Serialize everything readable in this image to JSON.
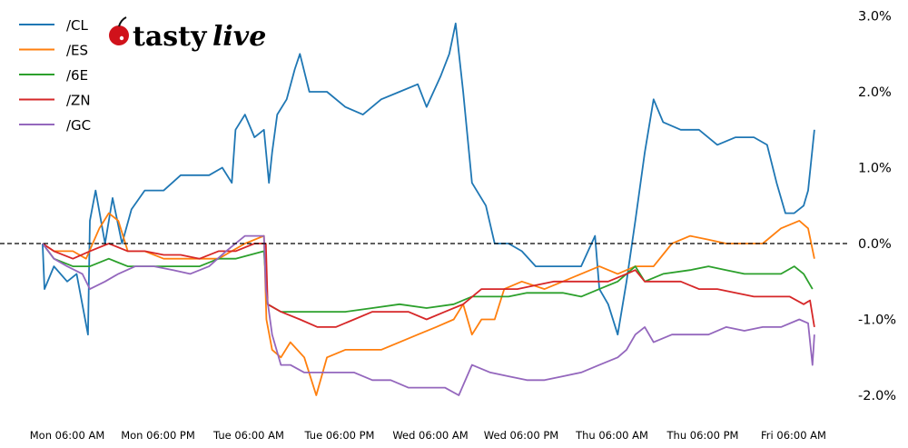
{
  "logo": {
    "text_a": "tasty",
    "text_b": "live"
  },
  "chart_data": {
    "type": "line",
    "title": "",
    "xlabel": "",
    "ylabel": "",
    "ylim": [
      -2.0,
      3.0
    ],
    "y_axis_side": "right",
    "y_ticks": [
      3.0,
      2.0,
      1.0,
      0.0,
      -1.0,
      -2.0
    ],
    "y_tick_labels": [
      "3.0%",
      "2.0%",
      "1.0%",
      "0.0%",
      "-1.0%",
      "-2.0%"
    ],
    "x_ticks": [
      "Mon 06:00",
      "Mon 18:00",
      "Tue 06:00",
      "Tue 18:00",
      "Wed 06:00",
      "Wed 18:00",
      "Thu 06:00",
      "Thu 18:00",
      "Fri 06:00"
    ],
    "x_tick_labels": [
      "Mon 06:00 AM",
      "Mon 06:00 PM",
      "Tue 06:00 AM",
      "Tue 06:00 PM",
      "Wed 06:00 AM",
      "Wed 06:00 PM",
      "Thu 06:00 AM",
      "Thu 06:00 PM",
      "Fri 06:00 AM"
    ],
    "reference_line": {
      "y": 0.0,
      "style": "dashed",
      "color": "#000000"
    },
    "grid": false,
    "legend_position": "top-left",
    "series": [
      {
        "name": "/CL",
        "color": "#1f77b4",
        "points": [
          [
            "Mon 02:45",
            0
          ],
          [
            "Mon 03:00",
            -0.6
          ],
          [
            "Mon 04:15",
            -0.3
          ],
          [
            "Mon 06:00",
            -0.5
          ],
          [
            "Mon 07:15",
            -0.4
          ],
          [
            "Mon 08:45",
            -1.2
          ],
          [
            "Mon 09:00",
            0.3
          ],
          [
            "Mon 09:45",
            0.7
          ],
          [
            "Mon 11:00",
            0.0
          ],
          [
            "Mon 12:00",
            0.6
          ],
          [
            "Mon 13:15",
            0.0
          ],
          [
            "Mon 14:30",
            0.45
          ],
          [
            "Mon 16:15",
            0.7
          ],
          [
            "Mon 18:45",
            0.7
          ],
          [
            "Mon 21:00",
            0.9
          ],
          [
            "Tue 00:45",
            0.9
          ],
          [
            "Tue 02:30",
            1.0
          ],
          [
            "Tue 03:45",
            0.8
          ],
          [
            "Tue 04:15",
            1.5
          ],
          [
            "Tue 05:30",
            1.7
          ],
          [
            "Tue 06:45",
            1.4
          ],
          [
            "Tue 08:00",
            1.5
          ],
          [
            "Tue 08:40",
            0.8
          ],
          [
            "Tue 09:05",
            1.2
          ],
          [
            "Tue 09:45",
            1.7
          ],
          [
            "Tue 11:00",
            1.9
          ],
          [
            "Tue 12:05",
            2.3
          ],
          [
            "Tue 12:45",
            2.5
          ],
          [
            "Tue 14:00",
            2.0
          ],
          [
            "Tue 16:20",
            2.0
          ],
          [
            "Tue 18:45",
            1.8
          ],
          [
            "Tue 21:05",
            1.7
          ],
          [
            "Tue 23:30",
            1.9
          ],
          [
            "Wed 01:55",
            2.0
          ],
          [
            "Wed 04:20",
            2.1
          ],
          [
            "Wed 05:30",
            1.8
          ],
          [
            "Wed 07:20",
            2.2
          ],
          [
            "Wed 08:30",
            2.5
          ],
          [
            "Wed 09:20",
            2.9
          ],
          [
            "Wed 10:20",
            2.0
          ],
          [
            "Wed 11:30",
            0.8
          ],
          [
            "Wed 13:20",
            0.5
          ],
          [
            "Wed 14:30",
            0.0
          ],
          [
            "Wed 16:20",
            0.0
          ],
          [
            "Wed 18:05",
            -0.1
          ],
          [
            "Wed 19:55",
            -0.3
          ],
          [
            "Wed 22:20",
            -0.3
          ],
          [
            "Thu 00:05",
            -0.3
          ],
          [
            "Thu 01:55",
            -0.3
          ],
          [
            "Thu 03:45",
            0.1
          ],
          [
            "Thu 04:20",
            -0.6
          ],
          [
            "Thu 05:30",
            -0.8
          ],
          [
            "Thu 06:45",
            -1.2
          ],
          [
            "Thu 07:55",
            -0.5
          ],
          [
            "Thu 09:05",
            0.3
          ],
          [
            "Thu 10:20",
            1.2
          ],
          [
            "Thu 11:30",
            1.9
          ],
          [
            "Thu 12:45",
            1.6
          ],
          [
            "Thu 15:05",
            1.5
          ],
          [
            "Thu 17:30",
            1.5
          ],
          [
            "Thu 19:55",
            1.3
          ],
          [
            "Thu 22:20",
            1.4
          ],
          [
            "Fri 00:45",
            1.4
          ],
          [
            "Fri 02:30",
            1.3
          ],
          [
            "Fri 03:45",
            0.8
          ],
          [
            "Fri 04:55",
            0.4
          ],
          [
            "Fri 06:05",
            0.4
          ],
          [
            "Fri 07:20",
            0.5
          ],
          [
            "Fri 07:55",
            0.7
          ],
          [
            "Fri 08:45",
            1.5
          ]
        ]
      },
      {
        "name": "/ES",
        "color": "#ff7f0e",
        "points": [
          [
            "Mon 02:45",
            0
          ],
          [
            "Mon 04:15",
            -0.1
          ],
          [
            "Mon 06:45",
            -0.1
          ],
          [
            "Mon 08:30",
            -0.2
          ],
          [
            "Mon 10:15",
            0.2
          ],
          [
            "Mon 11:30",
            0.4
          ],
          [
            "Mon 12:45",
            0.3
          ],
          [
            "Mon 14:00",
            -0.1
          ],
          [
            "Mon 16:15",
            -0.1
          ],
          [
            "Mon 18:45",
            -0.2
          ],
          [
            "Mon 21:00",
            -0.2
          ],
          [
            "Mon 23:30",
            -0.2
          ],
          [
            "Tue 02:00",
            -0.2
          ],
          [
            "Tue 05:30",
            0.0
          ],
          [
            "Tue 08:00",
            0.1
          ],
          [
            "Tue 08:20",
            -1.0
          ],
          [
            "Tue 09:05",
            -1.4
          ],
          [
            "Tue 10:15",
            -1.5
          ],
          [
            "Tue 11:30",
            -1.3
          ],
          [
            "Tue 13:20",
            -1.5
          ],
          [
            "Tue 14:55",
            -2.0
          ],
          [
            "Tue 16:20",
            -1.5
          ],
          [
            "Tue 18:45",
            -1.4
          ],
          [
            "Tue 21:05",
            -1.4
          ],
          [
            "Tue 23:30",
            -1.4
          ],
          [
            "Wed 01:55",
            -1.3
          ],
          [
            "Wed 04:20",
            -1.2
          ],
          [
            "Wed 06:45",
            -1.1
          ],
          [
            "Wed 09:05",
            -1.0
          ],
          [
            "Wed 10:20",
            -0.8
          ],
          [
            "Wed 11:30",
            -1.2
          ],
          [
            "Wed 12:45",
            -1.0
          ],
          [
            "Wed 14:30",
            -1.0
          ],
          [
            "Wed 15:45",
            -0.6
          ],
          [
            "Wed 18:05",
            -0.5
          ],
          [
            "Wed 21:05",
            -0.6
          ],
          [
            "Wed 23:30",
            -0.5
          ],
          [
            "Thu 01:55",
            -0.4
          ],
          [
            "Thu 04:20",
            -0.3
          ],
          [
            "Thu 06:45",
            -0.4
          ],
          [
            "Thu 09:05",
            -0.3
          ],
          [
            "Thu 11:30",
            -0.3
          ],
          [
            "Thu 13:55",
            0.0
          ],
          [
            "Thu 16:20",
            0.1
          ],
          [
            "Thu 18:45",
            0.05
          ],
          [
            "Thu 21:05",
            0.0
          ],
          [
            "Thu 23:30",
            0.0
          ],
          [
            "Fri 01:55",
            0.0
          ],
          [
            "Fri 04:20",
            0.2
          ],
          [
            "Fri 06:45",
            0.3
          ],
          [
            "Fri 07:55",
            0.2
          ],
          [
            "Fri 08:45",
            -0.2
          ]
        ]
      },
      {
        "name": "/6E",
        "color": "#2ca02c",
        "points": [
          [
            "Mon 02:45",
            0
          ],
          [
            "Mon 04:15",
            -0.2
          ],
          [
            "Mon 06:45",
            -0.3
          ],
          [
            "Mon 09:00",
            -0.3
          ],
          [
            "Mon 11:30",
            -0.2
          ],
          [
            "Mon 14:00",
            -0.3
          ],
          [
            "Mon 16:15",
            -0.3
          ],
          [
            "Mon 18:45",
            -0.3
          ],
          [
            "Mon 21:00",
            -0.3
          ],
          [
            "Mon 23:30",
            -0.3
          ],
          [
            "Tue 02:00",
            -0.2
          ],
          [
            "Tue 04:15",
            -0.2
          ],
          [
            "Tue 08:00",
            -0.1
          ],
          [
            "Tue 08:30",
            -0.8
          ],
          [
            "Tue 10:15",
            -0.9
          ],
          [
            "Tue 12:45",
            -0.9
          ],
          [
            "Tue 15:05",
            -0.9
          ],
          [
            "Tue 18:45",
            -0.9
          ],
          [
            "Tue 22:20",
            -0.85
          ],
          [
            "Wed 01:55",
            -0.8
          ],
          [
            "Wed 05:30",
            -0.85
          ],
          [
            "Wed 09:05",
            -0.8
          ],
          [
            "Wed 11:30",
            -0.7
          ],
          [
            "Wed 13:55",
            -0.7
          ],
          [
            "Wed 16:20",
            -0.7
          ],
          [
            "Wed 18:45",
            -0.65
          ],
          [
            "Wed 21:05",
            -0.65
          ],
          [
            "Wed 23:30",
            -0.65
          ],
          [
            "Thu 01:55",
            -0.7
          ],
          [
            "Thu 04:20",
            -0.6
          ],
          [
            "Thu 06:45",
            -0.5
          ],
          [
            "Thu 09:05",
            -0.3
          ],
          [
            "Thu 10:20",
            -0.5
          ],
          [
            "Thu 12:45",
            -0.4
          ],
          [
            "Thu 16:20",
            -0.35
          ],
          [
            "Thu 18:45",
            -0.3
          ],
          [
            "Thu 21:05",
            -0.35
          ],
          [
            "Thu 23:30",
            -0.4
          ],
          [
            "Fri 01:55",
            -0.4
          ],
          [
            "Fri 04:20",
            -0.4
          ],
          [
            "Fri 06:05",
            -0.3
          ],
          [
            "Fri 07:20",
            -0.4
          ],
          [
            "Fri 08:30",
            -0.6
          ]
        ]
      },
      {
        "name": "/ZN",
        "color": "#d62728",
        "points": [
          [
            "Mon 02:45",
            0
          ],
          [
            "Mon 04:15",
            -0.1
          ],
          [
            "Mon 06:45",
            -0.2
          ],
          [
            "Mon 09:00",
            -0.1
          ],
          [
            "Mon 11:30",
            0.0
          ],
          [
            "Mon 14:00",
            -0.1
          ],
          [
            "Mon 16:15",
            -0.1
          ],
          [
            "Mon 18:45",
            -0.15
          ],
          [
            "Mon 21:00",
            -0.15
          ],
          [
            "Mon 23:30",
            -0.2
          ],
          [
            "Tue 02:00",
            -0.1
          ],
          [
            "Tue 04:15",
            -0.1
          ],
          [
            "Tue 06:45",
            0.0
          ],
          [
            "Tue 08:15",
            0.0
          ],
          [
            "Tue 08:30",
            -0.8
          ],
          [
            "Tue 10:15",
            -0.9
          ],
          [
            "Tue 12:45",
            -1.0
          ],
          [
            "Tue 15:05",
            -1.1
          ],
          [
            "Tue 17:30",
            -1.1
          ],
          [
            "Tue 19:55",
            -1.0
          ],
          [
            "Tue 22:20",
            -0.9
          ],
          [
            "Wed 00:45",
            -0.9
          ],
          [
            "Wed 03:05",
            -0.9
          ],
          [
            "Wed 05:30",
            -1.0
          ],
          [
            "Wed 07:55",
            -0.9
          ],
          [
            "Wed 10:20",
            -0.8
          ],
          [
            "Wed 12:45",
            -0.6
          ],
          [
            "Wed 15:05",
            -0.6
          ],
          [
            "Wed 17:30",
            -0.6
          ],
          [
            "Wed 19:55",
            -0.55
          ],
          [
            "Wed 22:20",
            -0.5
          ],
          [
            "Thu 00:45",
            -0.5
          ],
          [
            "Thu 03:05",
            -0.5
          ],
          [
            "Thu 05:30",
            -0.5
          ],
          [
            "Thu 07:55",
            -0.4
          ],
          [
            "Thu 09:05",
            -0.35
          ],
          [
            "Thu 10:20",
            -0.5
          ],
          [
            "Thu 12:45",
            -0.5
          ],
          [
            "Thu 15:05",
            -0.5
          ],
          [
            "Thu 17:30",
            -0.6
          ],
          [
            "Thu 19:55",
            -0.6
          ],
          [
            "Thu 22:20",
            -0.65
          ],
          [
            "Fri 00:45",
            -0.7
          ],
          [
            "Fri 03:05",
            -0.7
          ],
          [
            "Fri 05:30",
            -0.7
          ],
          [
            "Fri 07:20",
            -0.8
          ],
          [
            "Fri 08:10",
            -0.75
          ],
          [
            "Fri 08:45",
            -1.1
          ]
        ]
      },
      {
        "name": "/GC",
        "color": "#9467bd",
        "points": [
          [
            "Mon 02:45",
            0
          ],
          [
            "Mon 04:15",
            -0.2
          ],
          [
            "Mon 06:00",
            -0.3
          ],
          [
            "Mon 08:00",
            -0.4
          ],
          [
            "Mon 09:00",
            -0.6
          ],
          [
            "Mon 11:00",
            -0.5
          ],
          [
            "Mon 12:45",
            -0.4
          ],
          [
            "Mon 15:00",
            -0.3
          ],
          [
            "Mon 17:30",
            -0.3
          ],
          [
            "Mon 20:00",
            -0.35
          ],
          [
            "Mon 22:15",
            -0.4
          ],
          [
            "Tue 00:45",
            -0.3
          ],
          [
            "Tue 03:00",
            -0.1
          ],
          [
            "Tue 05:30",
            0.1
          ],
          [
            "Tue 08:00",
            0.1
          ],
          [
            "Tue 08:15",
            -0.6
          ],
          [
            "Tue 09:05",
            -1.2
          ],
          [
            "Tue 10:15",
            -1.6
          ],
          [
            "Tue 11:30",
            -1.6
          ],
          [
            "Tue 13:20",
            -1.7
          ],
          [
            "Tue 15:05",
            -1.7
          ],
          [
            "Tue 17:30",
            -1.7
          ],
          [
            "Tue 19:55",
            -1.7
          ],
          [
            "Tue 22:20",
            -1.8
          ],
          [
            "Wed 00:45",
            -1.8
          ],
          [
            "Wed 03:05",
            -1.9
          ],
          [
            "Wed 05:30",
            -1.9
          ],
          [
            "Wed 07:55",
            -1.9
          ],
          [
            "Wed 09:45",
            -2.0
          ],
          [
            "Wed 11:30",
            -1.6
          ],
          [
            "Wed 13:55",
            -1.7
          ],
          [
            "Wed 16:20",
            -1.75
          ],
          [
            "Wed 18:45",
            -1.8
          ],
          [
            "Wed 21:05",
            -1.8
          ],
          [
            "Wed 23:30",
            -1.75
          ],
          [
            "Thu 01:55",
            -1.7
          ],
          [
            "Thu 04:20",
            -1.6
          ],
          [
            "Thu 06:45",
            -1.5
          ],
          [
            "Thu 07:55",
            -1.4
          ],
          [
            "Thu 09:05",
            -1.2
          ],
          [
            "Thu 10:20",
            -1.1
          ],
          [
            "Thu 11:30",
            -1.3
          ],
          [
            "Thu 13:55",
            -1.2
          ],
          [
            "Thu 16:20",
            -1.2
          ],
          [
            "Thu 18:45",
            -1.2
          ],
          [
            "Thu 21:05",
            -1.1
          ],
          [
            "Thu 23:30",
            -1.15
          ],
          [
            "Fri 01:55",
            -1.1
          ],
          [
            "Fri 04:20",
            -1.1
          ],
          [
            "Fri 06:45",
            -1.0
          ],
          [
            "Fri 07:55",
            -1.05
          ],
          [
            "Fri 08:30",
            -1.6
          ],
          [
            "Fri 08:45",
            -1.2
          ]
        ]
      }
    ]
  }
}
